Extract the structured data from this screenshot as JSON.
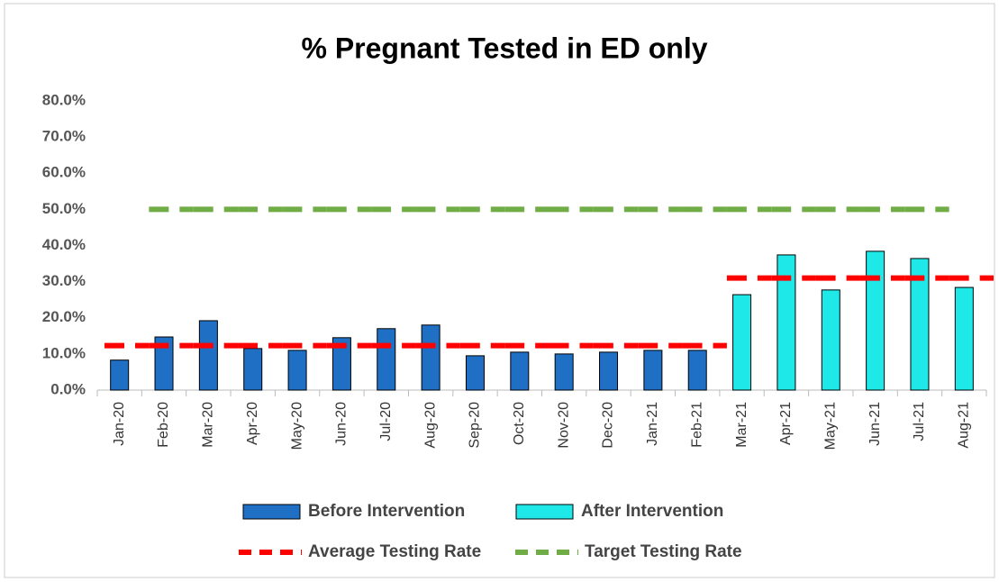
{
  "chart_data": {
    "type": "bar",
    "title": "% Pregnant Tested in ED only",
    "categories": [
      "Jan-20",
      "Feb-20",
      "Mar-20",
      "Apr-20",
      "May-20",
      "Jun-20",
      "Jul-20",
      "Aug-20",
      "Sep-20",
      "Oct-20",
      "Nov-20",
      "Dec-20",
      "Jan-21",
      "Feb-21",
      "Mar-21",
      "Apr-21",
      "May-21",
      "Jun-21",
      "Jul-21",
      "Aug-21"
    ],
    "series": [
      {
        "name": "Before Intervention",
        "type": "bar",
        "color": "#1f6fc5",
        "values": [
          8.3,
          14.7,
          19.2,
          11.5,
          11.0,
          14.5,
          17.0,
          18.0,
          9.5,
          10.5,
          10.0,
          10.5,
          11.0,
          11.0,
          null,
          null,
          null,
          null,
          null,
          null
        ]
      },
      {
        "name": "After Intervention",
        "type": "bar",
        "color": "#1ee8e8",
        "values": [
          null,
          null,
          null,
          null,
          null,
          null,
          null,
          null,
          null,
          null,
          null,
          null,
          null,
          null,
          26.4,
          37.4,
          27.7,
          38.4,
          36.4,
          28.4
        ]
      },
      {
        "name": "Average Testing Rate",
        "type": "line",
        "color": "#ff0000",
        "values": [
          12.3,
          12.3,
          12.3,
          12.3,
          12.3,
          12.3,
          12.3,
          12.3,
          12.3,
          12.3,
          12.3,
          12.3,
          12.3,
          12.3,
          31.0,
          31.0,
          31.0,
          31.0,
          31.0,
          31.0
        ]
      },
      {
        "name": "Target Testing Rate",
        "type": "line",
        "color": "#70ad47",
        "values": [
          null,
          50,
          50,
          50,
          50,
          50,
          50,
          50,
          50,
          50,
          50,
          50,
          50,
          50,
          50,
          50,
          50,
          50,
          50,
          null
        ]
      }
    ],
    "ylim": [
      0,
      80
    ],
    "yticks": [
      {
        "value": 0,
        "label": "0.0%"
      },
      {
        "value": 10,
        "label": "10.0%"
      },
      {
        "value": 20,
        "label": "20.0%"
      },
      {
        "value": 30,
        "label": "30.0%"
      },
      {
        "value": 40,
        "label": "40.0%"
      },
      {
        "value": 50,
        "label": "50.0%"
      },
      {
        "value": 60,
        "label": "60.0%"
      },
      {
        "value": 70,
        "label": "70.0%"
      },
      {
        "value": 80,
        "label": "80.0%"
      }
    ],
    "grid": false,
    "legend": "bottom"
  }
}
